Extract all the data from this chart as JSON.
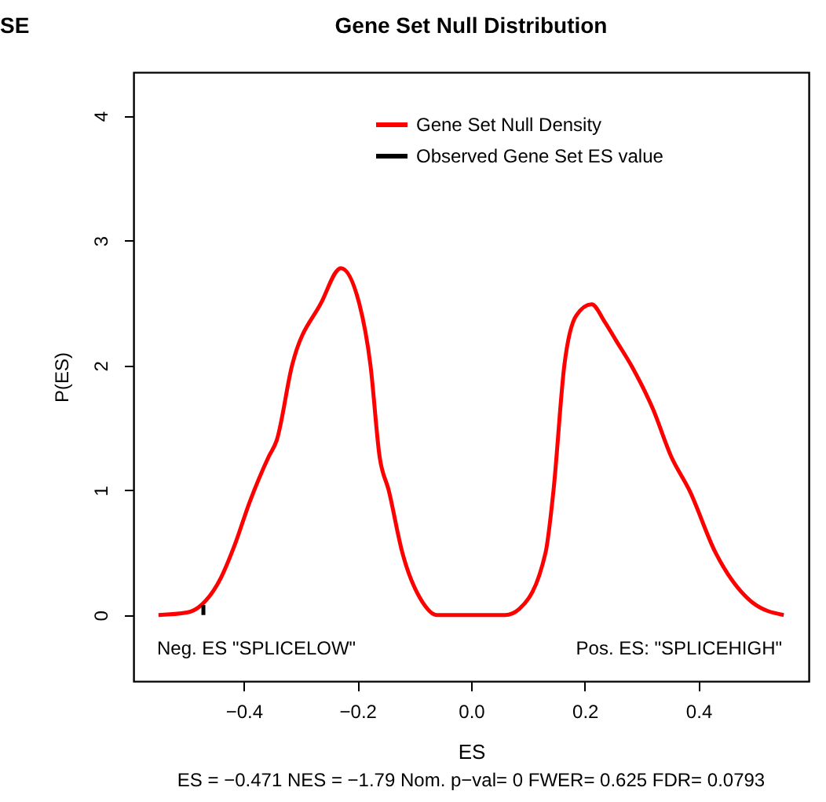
{
  "chart_data": {
    "type": "line",
    "title": "Gene Set Null Distribution",
    "xlabel": "ES",
    "ylabel": "P(ES)",
    "xlim": [
      -0.594,
      0.594
    ],
    "ylim": [
      -0.53,
      4.35
    ],
    "xticks": [
      {
        "value": -0.4,
        "label": "−0.4"
      },
      {
        "value": -0.2,
        "label": "−0.2"
      },
      {
        "value": 0,
        "label": "0.0"
      },
      {
        "value": 0.2,
        "label": "0.2"
      },
      {
        "value": 0.4,
        "label": "0.4"
      }
    ],
    "yticks": [
      0,
      1,
      2,
      3,
      4
    ],
    "legend": "top right",
    "series": [
      {
        "name": "Gene Set Null Density",
        "color": "#ff0000",
        "x": [
          -0.55,
          -0.5,
          -0.47,
          -0.44,
          -0.416,
          -0.39,
          -0.356,
          -0.342,
          -0.315,
          -0.264,
          -0.229,
          -0.197,
          -0.177,
          -0.161,
          -0.145,
          -0.121,
          -0.085,
          -0.06,
          0,
          0.06,
          0.085,
          0.131,
          0.145,
          0.164,
          0.185,
          0.212,
          0.235,
          0.255,
          0.283,
          0.32,
          0.352,
          0.384,
          0.43,
          0.495,
          0.55
        ],
        "values": [
          0,
          0.02,
          0.1,
          0.3,
          0.56,
          0.9,
          1.27,
          1.4,
          2.0,
          2.5,
          2.78,
          2.5,
          2.0,
          1.27,
          1.0,
          0.5,
          0.1,
          0,
          0,
          0,
          0.05,
          0.5,
          1.0,
          2.0,
          2.4,
          2.49,
          2.35,
          2.2,
          1.99,
          1.65,
          1.27,
          1.0,
          0.5,
          0.1,
          0
        ]
      },
      {
        "name": "Observed Gene Set ES value",
        "color": "#000000",
        "x": [
          -0.471,
          -0.471
        ],
        "values": [
          0,
          0.08
        ]
      }
    ],
    "annotations": [
      "SE",
      "Neg. ES \"SPLICELOW\"",
      "Pos. ES: \"SPLICEHIGH\"",
      "ES = −0.471  NES = −1.79 Nom. p−val= 0 FWER= 0.625 FDR= 0.0793"
    ]
  }
}
